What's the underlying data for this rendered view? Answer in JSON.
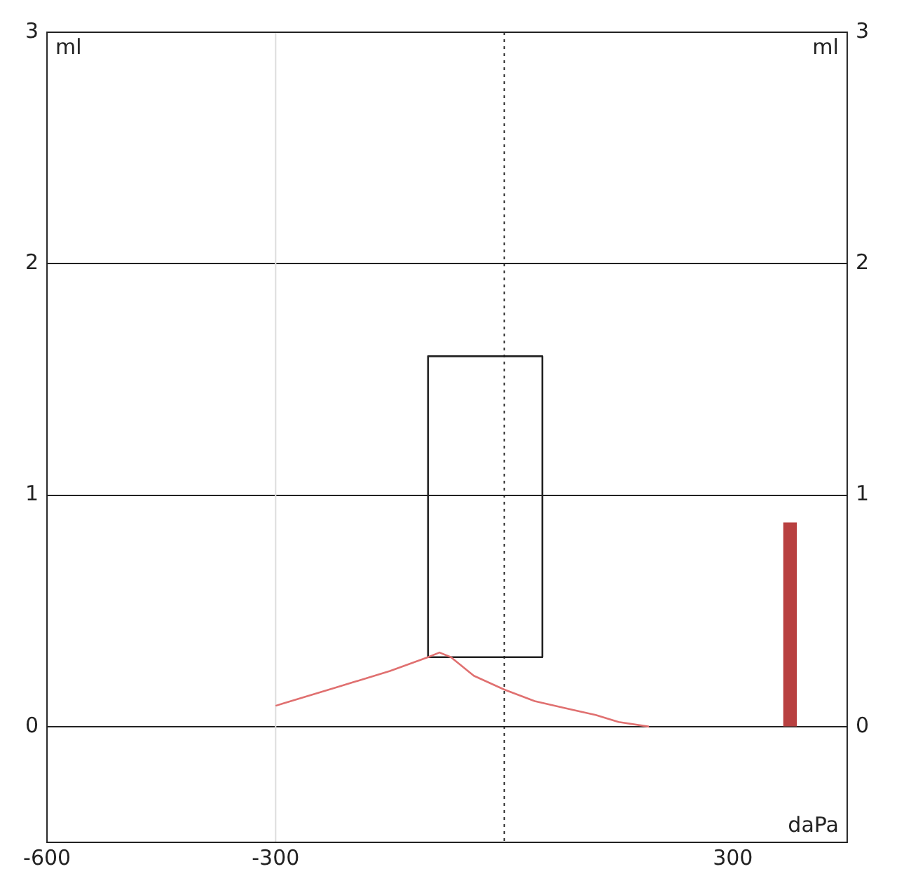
{
  "chart_data": {
    "type": "line",
    "xlabel": "daPa",
    "ylabel": "ml",
    "y2label": "ml",
    "xlim": [
      -600,
      450
    ],
    "xticks": [
      -600,
      -300,
      300
    ],
    "ylim": [
      -0.5,
      3
    ],
    "yticks": [
      0,
      1,
      2,
      3
    ],
    "y2lim": [
      -0.5,
      3
    ],
    "y2ticks": [
      0,
      1,
      2,
      3
    ],
    "grid": "y",
    "legend": false,
    "marker": "none",
    "line_style": "solid",
    "series": [
      {
        "color": "#e07070",
        "x": [
          -300,
          -290,
          -220,
          -150,
          -100,
          -85,
          -70,
          -40,
          0,
          40,
          80,
          120,
          150,
          190
        ],
        "values": [
          0.09,
          0.1,
          0.17,
          0.24,
          0.3,
          0.32,
          0.3,
          0.22,
          0.16,
          0.11,
          0.08,
          0.05,
          0.02,
          0
        ]
      },
      {
        "color": "#222222",
        "x": [
          -100,
          -100,
          50,
          50
        ],
        "values": [
          0.3,
          1.6,
          1.6,
          0.3
        ]
      },
      {
        "color": "#222222",
        "x": [
          -100,
          50
        ],
        "values": [
          0.3,
          0.3
        ]
      },
      {
        "type": "bar",
        "color": "#b84040",
        "x": [
          375
        ],
        "values": [
          0.88
        ]
      }
    ],
    "ref_lines": [
      {
        "axis": "x",
        "value": -300,
        "color": "#dddddd",
        "line_style": "solid"
      },
      {
        "axis": "x",
        "value": 0,
        "color": "#222222",
        "line_style": "dotted"
      }
    ]
  }
}
